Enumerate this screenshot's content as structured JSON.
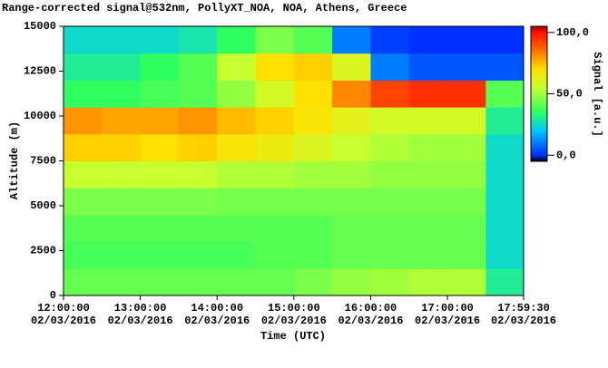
{
  "chart_data": {
    "type": "heatmap",
    "title": "Range-corrected signal@532nm, PollyXT_NOA, NOA, Athens, Greece",
    "x_label": "Time (UTC)",
    "y_label": "Altitude (m)",
    "colorbar_label": "Signal [a.u.]",
    "xlim": [
      12,
      17.992
    ],
    "ylim": [
      0,
      15000
    ],
    "zlim": [
      -5,
      105
    ],
    "xticks": [
      {
        "value": 12,
        "label": [
          "12:00:00",
          "02/03/2016"
        ]
      },
      {
        "value": 13,
        "label": [
          "13:00:00",
          "02/03/2016"
        ]
      },
      {
        "value": 14,
        "label": [
          "14:00:00",
          "02/03/2016"
        ]
      },
      {
        "value": 15,
        "label": [
          "15:00:00",
          "02/03/2016"
        ]
      },
      {
        "value": 16,
        "label": [
          "16:00:00",
          "02/03/2016"
        ]
      },
      {
        "value": 17,
        "label": [
          "17:00:00",
          "02/03/2016"
        ]
      },
      {
        "value": 17.992,
        "label": [
          "17:59:30",
          "02/03/2016"
        ]
      }
    ],
    "yticks": [
      0,
      2500,
      5000,
      7500,
      10000,
      12500,
      15000
    ],
    "zticks": [
      {
        "value": 0,
        "label": "0,0"
      },
      {
        "value": 50,
        "label": "50,0"
      },
      {
        "value": 100,
        "label": "100,0"
      }
    ],
    "colorscale": [
      [
        -5,
        "#000000"
      ],
      [
        0,
        "#0030ff"
      ],
      [
        20,
        "#00c8ff"
      ],
      [
        35,
        "#30ff60"
      ],
      [
        55,
        "#c8ff30"
      ],
      [
        70,
        "#ffe000"
      ],
      [
        85,
        "#ff7000"
      ],
      [
        100,
        "#ff1000"
      ],
      [
        105,
        "#a00000"
      ]
    ],
    "x_edges": [
      12,
      12.5,
      13,
      13.5,
      14,
      14.5,
      15,
      15.5,
      16,
      16.5,
      17,
      17.5,
      17.992
    ],
    "y_edges": [
      0,
      1500,
      3000,
      4500,
      6000,
      7500,
      9000,
      10500,
      12000,
      13500,
      15000
    ],
    "z": [
      [
        42,
        42,
        42,
        42,
        42,
        42,
        45,
        48,
        50,
        52,
        52,
        30
      ],
      [
        38,
        38,
        38,
        38,
        38,
        40,
        40,
        42,
        42,
        42,
        42,
        25
      ],
      [
        40,
        40,
        40,
        40,
        40,
        40,
        40,
        42,
        42,
        42,
        42,
        25
      ],
      [
        45,
        45,
        45,
        45,
        44,
        44,
        44,
        44,
        44,
        44,
        44,
        25
      ],
      [
        55,
        55,
        55,
        55,
        52,
        52,
        50,
        50,
        48,
        48,
        48,
        25
      ],
      [
        72,
        72,
        70,
        72,
        68,
        65,
        60,
        55,
        52,
        50,
        50,
        25
      ],
      [
        80,
        78,
        78,
        80,
        75,
        72,
        68,
        62,
        58,
        58,
        58,
        30
      ],
      [
        35,
        35,
        38,
        40,
        48,
        58,
        70,
        82,
        92,
        95,
        95,
        40
      ],
      [
        30,
        30,
        35,
        40,
        55,
        70,
        72,
        60,
        10,
        5,
        5,
        5
      ],
      [
        25,
        25,
        25,
        28,
        35,
        45,
        40,
        10,
        2,
        0,
        0,
        0
      ]
    ]
  }
}
